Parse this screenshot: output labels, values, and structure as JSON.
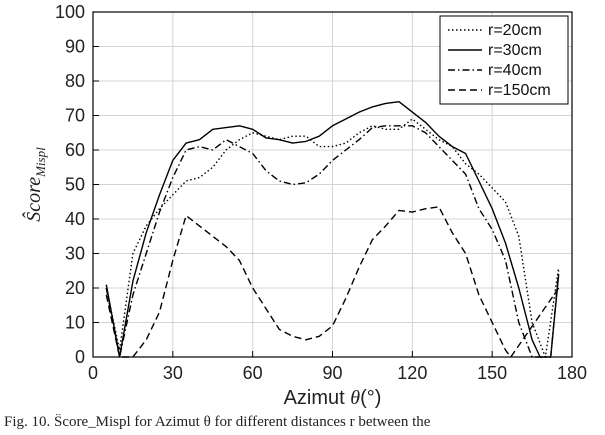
{
  "chart_data": {
    "type": "line",
    "xlabel_prefix": "Azimut ",
    "xlabel_symbol": "θ",
    "xlabel_unit": "(°)",
    "ylabel_main": "Ŝcore",
    "ylabel_sub": "Mispl",
    "xlim": [
      0,
      180
    ],
    "ylim": [
      0,
      100
    ],
    "xticks": [
      0,
      30,
      60,
      90,
      120,
      150,
      180
    ],
    "yticks": [
      0,
      10,
      20,
      30,
      40,
      50,
      60,
      70,
      80,
      90,
      100
    ],
    "grid": true,
    "legend_position": "top-right",
    "series": [
      {
        "name": "r=20cm",
        "dash": "dotted",
        "points": [
          [
            5,
            20
          ],
          [
            10,
            2
          ],
          [
            15,
            30
          ],
          [
            20,
            38
          ],
          [
            25,
            43
          ],
          [
            30,
            47
          ],
          [
            35,
            51
          ],
          [
            40,
            52
          ],
          [
            45,
            55
          ],
          [
            50,
            60
          ],
          [
            55,
            63
          ],
          [
            60,
            65
          ],
          [
            65,
            64
          ],
          [
            70,
            63
          ],
          [
            75,
            64
          ],
          [
            80,
            64
          ],
          [
            85,
            61
          ],
          [
            90,
            61
          ],
          [
            95,
            62
          ],
          [
            100,
            65
          ],
          [
            105,
            67
          ],
          [
            110,
            66
          ],
          [
            115,
            66
          ],
          [
            120,
            69
          ],
          [
            125,
            66
          ],
          [
            130,
            63
          ],
          [
            135,
            61
          ],
          [
            140,
            56
          ],
          [
            145,
            53
          ],
          [
            150,
            49
          ],
          [
            155,
            45
          ],
          [
            160,
            35
          ],
          [
            165,
            10
          ],
          [
            170,
            0
          ],
          [
            175,
            26
          ]
        ]
      },
      {
        "name": "r=30cm",
        "dash": "solid",
        "points": [
          [
            5,
            21
          ],
          [
            10,
            0
          ],
          [
            15,
            22
          ],
          [
            20,
            36
          ],
          [
            25,
            47
          ],
          [
            30,
            57
          ],
          [
            35,
            62
          ],
          [
            40,
            63
          ],
          [
            45,
            66
          ],
          [
            50,
            66.5
          ],
          [
            55,
            67
          ],
          [
            60,
            66
          ],
          [
            65,
            63.5
          ],
          [
            70,
            63
          ],
          [
            75,
            62
          ],
          [
            80,
            62.5
          ],
          [
            85,
            64
          ],
          [
            90,
            67
          ],
          [
            95,
            69
          ],
          [
            100,
            71
          ],
          [
            105,
            72.5
          ],
          [
            110,
            73.5
          ],
          [
            115,
            74
          ],
          [
            120,
            71
          ],
          [
            125,
            68
          ],
          [
            130,
            64
          ],
          [
            135,
            61
          ],
          [
            140,
            59
          ],
          [
            145,
            51
          ],
          [
            150,
            43
          ],
          [
            155,
            33
          ],
          [
            160,
            20
          ],
          [
            165,
            5
          ],
          [
            168,
            0
          ],
          [
            172,
            0
          ],
          [
            175,
            24
          ]
        ]
      },
      {
        "name": "r=40cm",
        "dash": "dashdot",
        "points": [
          [
            5,
            20
          ],
          [
            10,
            0
          ],
          [
            15,
            18
          ],
          [
            20,
            30
          ],
          [
            25,
            42
          ],
          [
            30,
            52
          ],
          [
            35,
            60
          ],
          [
            40,
            61
          ],
          [
            45,
            60
          ],
          [
            50,
            63
          ],
          [
            55,
            61
          ],
          [
            60,
            59
          ],
          [
            65,
            54
          ],
          [
            70,
            51
          ],
          [
            75,
            50
          ],
          [
            80,
            50.5
          ],
          [
            85,
            53
          ],
          [
            90,
            57
          ],
          [
            95,
            60
          ],
          [
            100,
            63
          ],
          [
            105,
            66.5
          ],
          [
            110,
            67
          ],
          [
            115,
            67
          ],
          [
            120,
            67
          ],
          [
            125,
            65
          ],
          [
            130,
            61
          ],
          [
            135,
            57
          ],
          [
            140,
            53
          ],
          [
            145,
            43
          ],
          [
            150,
            37
          ],
          [
            155,
            28
          ],
          [
            160,
            10
          ],
          [
            165,
            0
          ],
          [
            172,
            0
          ],
          [
            175,
            25
          ]
        ]
      },
      {
        "name": "r=150cm",
        "dash": "dashed",
        "points": [
          [
            5,
            18
          ],
          [
            10,
            0
          ],
          [
            15,
            0
          ],
          [
            20,
            5
          ],
          [
            25,
            13
          ],
          [
            30,
            28
          ],
          [
            35,
            41
          ],
          [
            40,
            38
          ],
          [
            45,
            35
          ],
          [
            50,
            32
          ],
          [
            55,
            28
          ],
          [
            60,
            20
          ],
          [
            65,
            14
          ],
          [
            70,
            8
          ],
          [
            75,
            6
          ],
          [
            80,
            5
          ],
          [
            85,
            6
          ],
          [
            90,
            9
          ],
          [
            95,
            17
          ],
          [
            100,
            26
          ],
          [
            105,
            34
          ],
          [
            110,
            38
          ],
          [
            115,
            42.5
          ],
          [
            120,
            42
          ],
          [
            125,
            43
          ],
          [
            130,
            43.5
          ],
          [
            135,
            36
          ],
          [
            140,
            30
          ],
          [
            145,
            18
          ],
          [
            150,
            10
          ],
          [
            155,
            2
          ],
          [
            157,
            0
          ],
          [
            175,
            20
          ]
        ]
      }
    ]
  },
  "caption": "Fig. 10. Ŝcore_Mispl for Azimut θ for different distances r between the"
}
